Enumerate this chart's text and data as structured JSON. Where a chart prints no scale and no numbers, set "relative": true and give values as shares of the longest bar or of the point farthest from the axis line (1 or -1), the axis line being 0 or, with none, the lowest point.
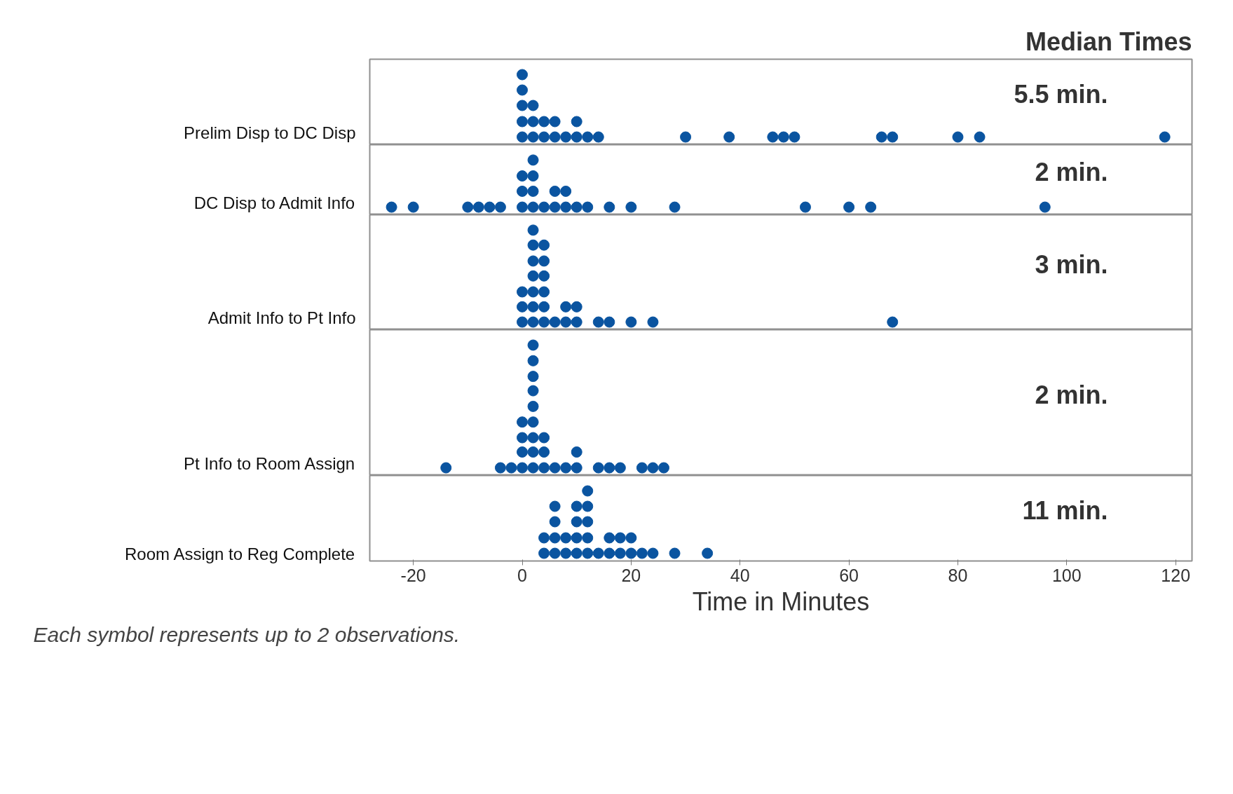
{
  "chart_data": [
    {
      "type": "scatter",
      "title": "Median Times",
      "ylabel": "Prelim Disp to DC Disp",
      "annotations": [
        "5.5 min."
      ],
      "color": "#0a54a0",
      "marker": "circle",
      "grid": false,
      "tick_labels": false,
      "relative": true,
      "xlim": [
        -28,
        123
      ],
      "x": [
        0,
        0,
        0,
        0,
        0,
        2,
        2,
        2,
        4,
        4,
        6,
        6,
        8,
        10,
        10,
        12,
        14,
        30,
        38,
        46,
        48,
        50,
        66,
        68,
        80,
        84,
        118
      ],
      "values": [
        0.11,
        0.33,
        0.56,
        0.78,
        1,
        0.11,
        0.33,
        0.56,
        0.11,
        0.33,
        0.11,
        0.33,
        0.11,
        0.11,
        0.33,
        0.11,
        0.11,
        0.11,
        0.11,
        0.11,
        0.11,
        0.11,
        0.11,
        0.11,
        0.11,
        0.11,
        0.11
      ]
    },
    {
      "type": "scatter",
      "ylabel": "DC Disp to Admit Info",
      "annotations": [
        "2 min."
      ],
      "color": "#0a54a0",
      "marker": "circle",
      "grid": false,
      "tick_labels": false,
      "relative": true,
      "xlim": [
        -28,
        123
      ],
      "x": [
        -24,
        -20,
        -10,
        -8,
        -6,
        -4,
        0,
        0,
        0,
        2,
        2,
        2,
        2,
        4,
        6,
        6,
        8,
        8,
        10,
        12,
        16,
        20,
        28,
        52,
        60,
        64,
        96
      ],
      "values": [
        0.14,
        0.14,
        0.14,
        0.14,
        0.14,
        0.14,
        0.14,
        0.43,
        0.71,
        0.14,
        0.43,
        0.71,
        1,
        0.14,
        0.14,
        0.43,
        0.14,
        0.43,
        0.14,
        0.14,
        0.14,
        0.14,
        0.14,
        0.14,
        0.14,
        0.14,
        0.14
      ]
    },
    {
      "type": "scatter",
      "ylabel": "Admit Info to Pt Info",
      "annotations": [
        "3 min."
      ],
      "color": "#0a54a0",
      "marker": "circle",
      "grid": false,
      "tick_labels": false,
      "relative": true,
      "xlim": [
        -28,
        123
      ],
      "x": [
        0,
        0,
        0,
        2,
        2,
        2,
        2,
        2,
        2,
        2,
        4,
        4,
        4,
        4,
        4,
        4,
        6,
        8,
        8,
        10,
        10,
        14,
        16,
        20,
        24,
        68
      ],
      "values": [
        0.077,
        0.23,
        0.38,
        0.077,
        0.23,
        0.38,
        0.54,
        0.69,
        0.85,
        1,
        0.077,
        0.23,
        0.38,
        0.54,
        0.69,
        0.85,
        0.077,
        0.077,
        0.23,
        0.077,
        0.23,
        0.077,
        0.077,
        0.077,
        0.077,
        0.077
      ]
    },
    {
      "type": "scatter",
      "ylabel": "Pt Info to Room Assign",
      "annotations": [
        "2 min."
      ],
      "color": "#0a54a0",
      "marker": "circle",
      "grid": false,
      "tick_labels": false,
      "relative": true,
      "xlim": [
        -28,
        123
      ],
      "x": [
        -14,
        -4,
        -2,
        0,
        0,
        0,
        0,
        2,
        2,
        2,
        2,
        2,
        2,
        2,
        2,
        2,
        4,
        4,
        4,
        6,
        8,
        10,
        10,
        14,
        16,
        18,
        22,
        24,
        26
      ],
      "values": [
        0.059,
        0.059,
        0.059,
        0.059,
        0.18,
        0.29,
        0.41,
        0.059,
        0.18,
        0.29,
        0.41,
        0.53,
        0.65,
        0.76,
        0.88,
        1,
        0.059,
        0.18,
        0.29,
        0.059,
        0.059,
        0.059,
        0.18,
        0.059,
        0.059,
        0.059,
        0.059,
        0.059,
        0.059
      ]
    },
    {
      "type": "scatter",
      "ylabel": "Room Assign to Reg Complete",
      "xlabel": "Time in Minutes",
      "annotations": [
        "11 min.",
        "Each symbol represents up to 2 observations."
      ],
      "color": "#0a54a0",
      "marker": "circle",
      "grid": false,
      "tick_labels": "x",
      "relative": true,
      "xlim": [
        -28,
        123
      ],
      "xticks": [
        -20,
        0,
        20,
        40,
        60,
        80,
        100,
        120
      ],
      "x": [
        4,
        4,
        6,
        6,
        6,
        6,
        8,
        8,
        10,
        10,
        10,
        10,
        12,
        12,
        12,
        12,
        12,
        14,
        16,
        16,
        18,
        18,
        20,
        20,
        22,
        24,
        28,
        34
      ],
      "values": [
        0.11,
        0.33,
        0.11,
        0.33,
        0.56,
        0.78,
        0.11,
        0.33,
        0.11,
        0.33,
        0.56,
        0.78,
        0.11,
        0.33,
        0.56,
        0.78,
        1,
        0.11,
        0.11,
        0.33,
        0.11,
        0.33,
        0.11,
        0.33,
        0.11,
        0.11,
        0.11,
        0.11
      ]
    }
  ]
}
